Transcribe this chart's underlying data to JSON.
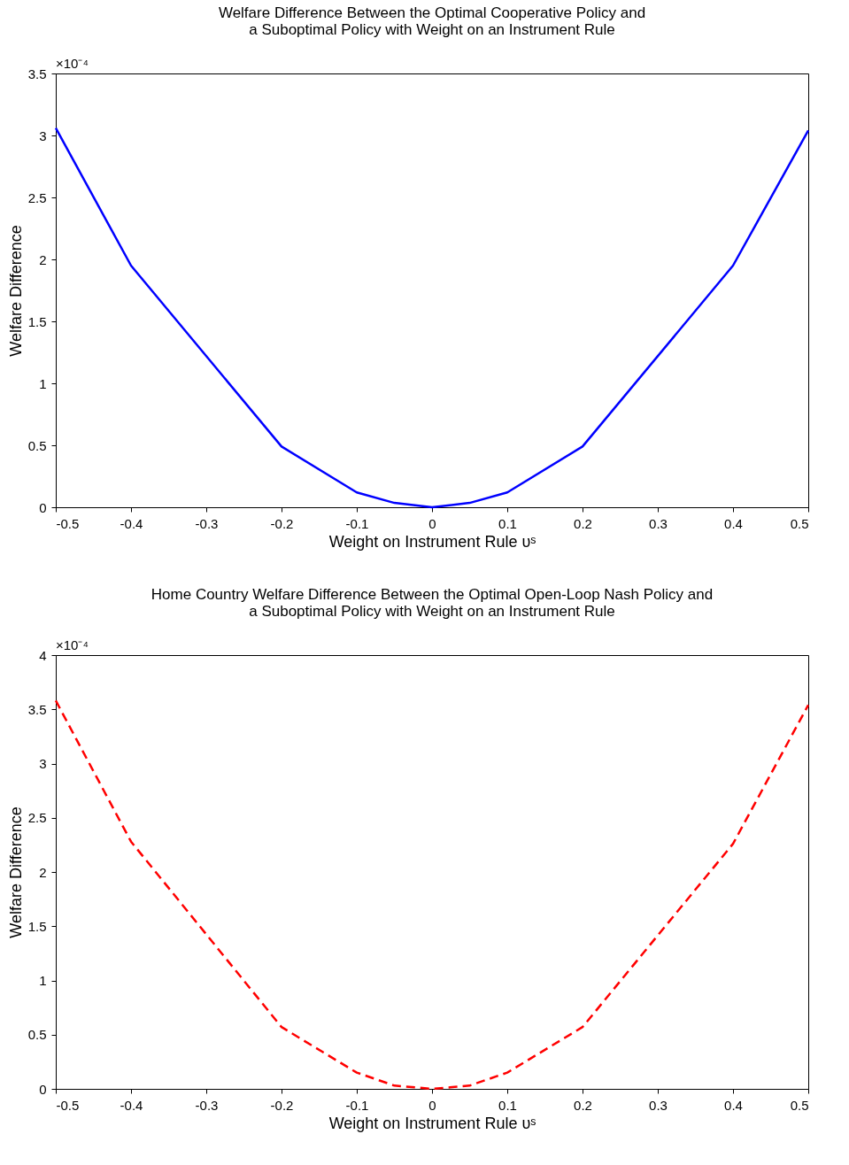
{
  "chart_data": [
    {
      "type": "line",
      "title": "Welfare Difference Between the Optimal Cooperative Policy  and\n a Suboptimal Policy with Weight on an Instrument Rule",
      "xlabel": "Weight on Instrument Rule υˢ",
      "ylabel": "Welfare Difference",
      "annotations": [
        "×10⁻⁴"
      ],
      "x": [
        -0.5,
        -0.4,
        -0.2,
        -0.1,
        -0.05,
        0,
        0.05,
        0.1,
        0.2,
        0.4,
        0.5
      ],
      "series": [
        {
          "color": "#0000ff",
          "line_style": "solid",
          "values": [
            3.06,
            1.95,
            0.49,
            0.12,
            0.035,
            0,
            0.035,
            0.12,
            0.49,
            1.95,
            3.04
          ]
        }
      ],
      "xlim": [
        -0.5,
        0.5
      ],
      "xticks": [
        -0.5,
        -0.4,
        -0.3,
        -0.2,
        -0.1,
        0,
        0.1,
        0.2,
        0.3,
        0.4,
        0.5
      ],
      "ylim": [
        0,
        3.5
      ],
      "yticks": [
        0,
        0.5,
        1,
        1.5,
        2,
        2.5,
        3,
        3.5
      ],
      "grid": false
    },
    {
      "type": "line",
      "title": "Home Country Welfare Difference Between the Optimal Open-Loop Nash Policy and\na Suboptimal Policy with Weight on an Instrument Rule",
      "xlabel": "Weight on Instrument Rule υˢ",
      "ylabel": "Welfare Difference",
      "annotations": [
        "×10⁻⁴"
      ],
      "x": [
        -0.5,
        -0.4,
        -0.2,
        -0.1,
        -0.05,
        0,
        0.05,
        0.1,
        0.2,
        0.4,
        0.5
      ],
      "series": [
        {
          "color": "#ff0000",
          "line_style": "dashed",
          "values": [
            3.58,
            2.28,
            0.57,
            0.15,
            0.03,
            0,
            0.03,
            0.15,
            0.57,
            2.26,
            3.54
          ]
        }
      ],
      "xlim": [
        -0.5,
        0.5
      ],
      "xticks": [
        -0.5,
        -0.4,
        -0.3,
        -0.2,
        -0.1,
        0,
        0.1,
        0.2,
        0.3,
        0.4,
        0.5
      ],
      "ylim": [
        0,
        4
      ],
      "yticks": [
        0,
        0.5,
        1,
        1.5,
        2,
        2.5,
        3,
        3.5,
        4
      ],
      "grid": false
    }
  ]
}
